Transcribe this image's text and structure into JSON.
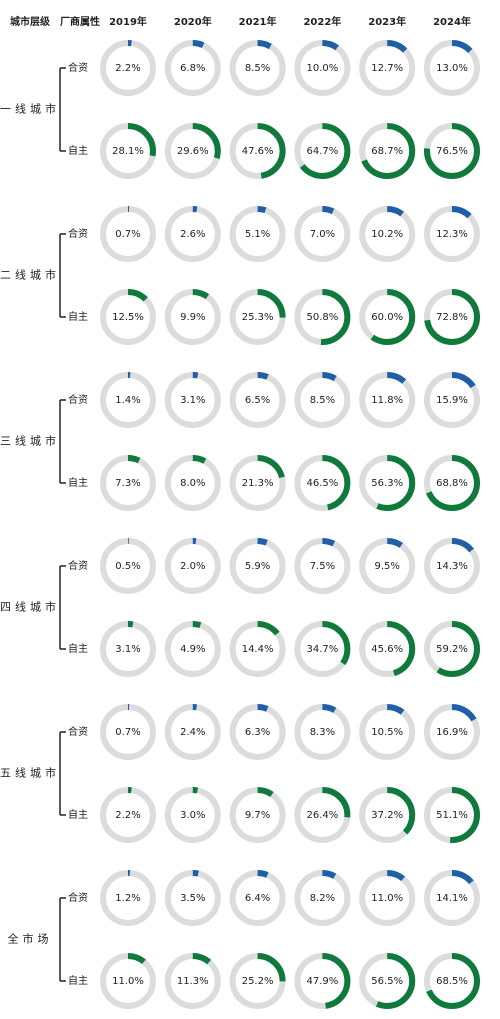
{
  "chart_data": {
    "type": "donut",
    "header": [
      "城市层级",
      "厂商属性"
    ],
    "years": [
      "2019年",
      "2020年",
      "2021年",
      "2022年",
      "2023年",
      "2024年"
    ],
    "track_color": "#dcdcdc",
    "tiers": [
      {
        "name": "一线城市",
        "rows": [
          {
            "name": "合资",
            "color": "#1f5fa8",
            "values": [
              2.2,
              6.8,
              8.5,
              10.0,
              12.7,
              13.0
            ],
            "value_labels": [
              "2.2%",
              "6.8%",
              "8.5%",
              "10.0%",
              "12.7%",
              "13.0%"
            ]
          },
          {
            "name": "自主",
            "color": "#0f7a3c",
            "values": [
              28.1,
              29.6,
              47.6,
              64.7,
              68.7,
              76.5
            ],
            "value_labels": [
              "28.1%",
              "29.6%",
              "47.6%",
              "64.7%",
              "68.7%",
              "76.5%"
            ]
          }
        ]
      },
      {
        "name": "二线城市",
        "rows": [
          {
            "name": "合资",
            "color": "#1f5fa8",
            "values": [
              0.7,
              2.6,
              5.1,
              7.0,
              10.2,
              12.3
            ],
            "value_labels": [
              "0.7%",
              "2.6%",
              "5.1%",
              "7.0%",
              "10.2%",
              "12.3%"
            ]
          },
          {
            "name": "自主",
            "color": "#0f7a3c",
            "values": [
              12.5,
              9.9,
              25.3,
              50.8,
              60.0,
              72.8
            ],
            "value_labels": [
              "12.5%",
              "9.9%",
              "25.3%",
              "50.8%",
              "60.0%",
              "72.8%"
            ]
          }
        ]
      },
      {
        "name": "三线城市",
        "rows": [
          {
            "name": "合资",
            "color": "#1f5fa8",
            "values": [
              1.4,
              3.1,
              6.5,
              8.5,
              11.8,
              15.9
            ],
            "value_labels": [
              "1.4%",
              "3.1%",
              "6.5%",
              "8.5%",
              "11.8%",
              "15.9%"
            ]
          },
          {
            "name": "自主",
            "color": "#0f7a3c",
            "values": [
              7.3,
              8.0,
              21.3,
              46.5,
              56.3,
              68.8
            ],
            "value_labels": [
              "7.3%",
              "8.0%",
              "21.3%",
              "46.5%",
              "56.3%",
              "68.8%"
            ]
          }
        ]
      },
      {
        "name": "四线城市",
        "rows": [
          {
            "name": "合资",
            "color": "#1f5fa8",
            "values": [
              0.5,
              2.0,
              5.9,
              7.5,
              9.5,
              14.3
            ],
            "value_labels": [
              "0.5%",
              "2.0%",
              "5.9%",
              "7.5%",
              "9.5%",
              "14.3%"
            ]
          },
          {
            "name": "自主",
            "color": "#0f7a3c",
            "values": [
              3.1,
              4.9,
              14.4,
              34.7,
              45.6,
              59.2
            ],
            "value_labels": [
              "3.1%",
              "4.9%",
              "14.4%",
              "34.7%",
              "45.6%",
              "59.2%"
            ]
          }
        ]
      },
      {
        "name": "五线城市",
        "rows": [
          {
            "name": "合资",
            "color": "#1f5fa8",
            "values": [
              0.7,
              2.4,
              6.3,
              8.3,
              10.5,
              16.9
            ],
            "value_labels": [
              "0.7%",
              "2.4%",
              "6.3%",
              "8.3%",
              "10.5%",
              "16.9%"
            ]
          },
          {
            "name": "自主",
            "color": "#0f7a3c",
            "values": [
              2.2,
              3.0,
              9.7,
              26.4,
              37.2,
              51.1
            ],
            "value_labels": [
              "2.2%",
              "3.0%",
              "9.7%",
              "26.4%",
              "37.2%",
              "51.1%"
            ]
          }
        ]
      },
      {
        "name": "全市场",
        "rows": [
          {
            "name": "合资",
            "color": "#1f5fa8",
            "values": [
              1.2,
              3.5,
              6.4,
              8.2,
              11.0,
              14.1
            ],
            "value_labels": [
              "1.2%",
              "3.5%",
              "6.4%",
              "8.2%",
              "11.0%",
              "14.1%"
            ]
          },
          {
            "name": "自主",
            "color": "#0f7a3c",
            "values": [
              11.0,
              11.3,
              25.2,
              47.9,
              56.5,
              68.5
            ],
            "value_labels": [
              "11.0%",
              "11.3%",
              "25.2%",
              "47.9%",
              "56.5%",
              "68.5%"
            ]
          }
        ]
      }
    ]
  }
}
